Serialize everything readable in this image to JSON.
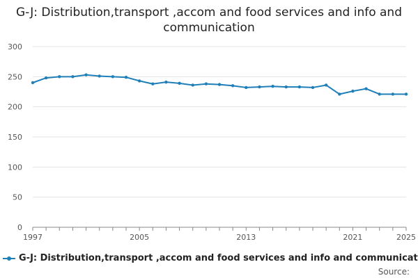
{
  "chart_data": {
    "type": "line",
    "title": "G-J: Distribution,transport ,accom and food services and info and communication",
    "x_ticks": [
      "1997",
      "2005",
      "2013",
      "2021",
      "2025"
    ],
    "y_ticks": [
      "0",
      "50",
      "100",
      "150",
      "200",
      "250",
      "300"
    ],
    "ylim": [
      0,
      300
    ],
    "xlim": [
      1997,
      2025
    ],
    "grid": true,
    "legend_position": "bottom",
    "series": [
      {
        "name": "G-J: Distribution,transport ,accom and food services and info and communication",
        "color": "#1f7fb8",
        "x": [
          1997,
          1998,
          1999,
          2000,
          2001,
          2002,
          2003,
          2004,
          2005,
          2006,
          2007,
          2008,
          2009,
          2010,
          2011,
          2012,
          2013,
          2014,
          2015,
          2016,
          2017,
          2018,
          2019,
          2020,
          2021,
          2022,
          2023,
          2024,
          2025
        ],
        "values": [
          240,
          248,
          250,
          250,
          253,
          251,
          250,
          249,
          243,
          238,
          241,
          239,
          236,
          238,
          237,
          235,
          232,
          233,
          234,
          233,
          233,
          232,
          236,
          221,
          226,
          230,
          221,
          221,
          221
        ]
      }
    ]
  },
  "source_label": "Source:"
}
